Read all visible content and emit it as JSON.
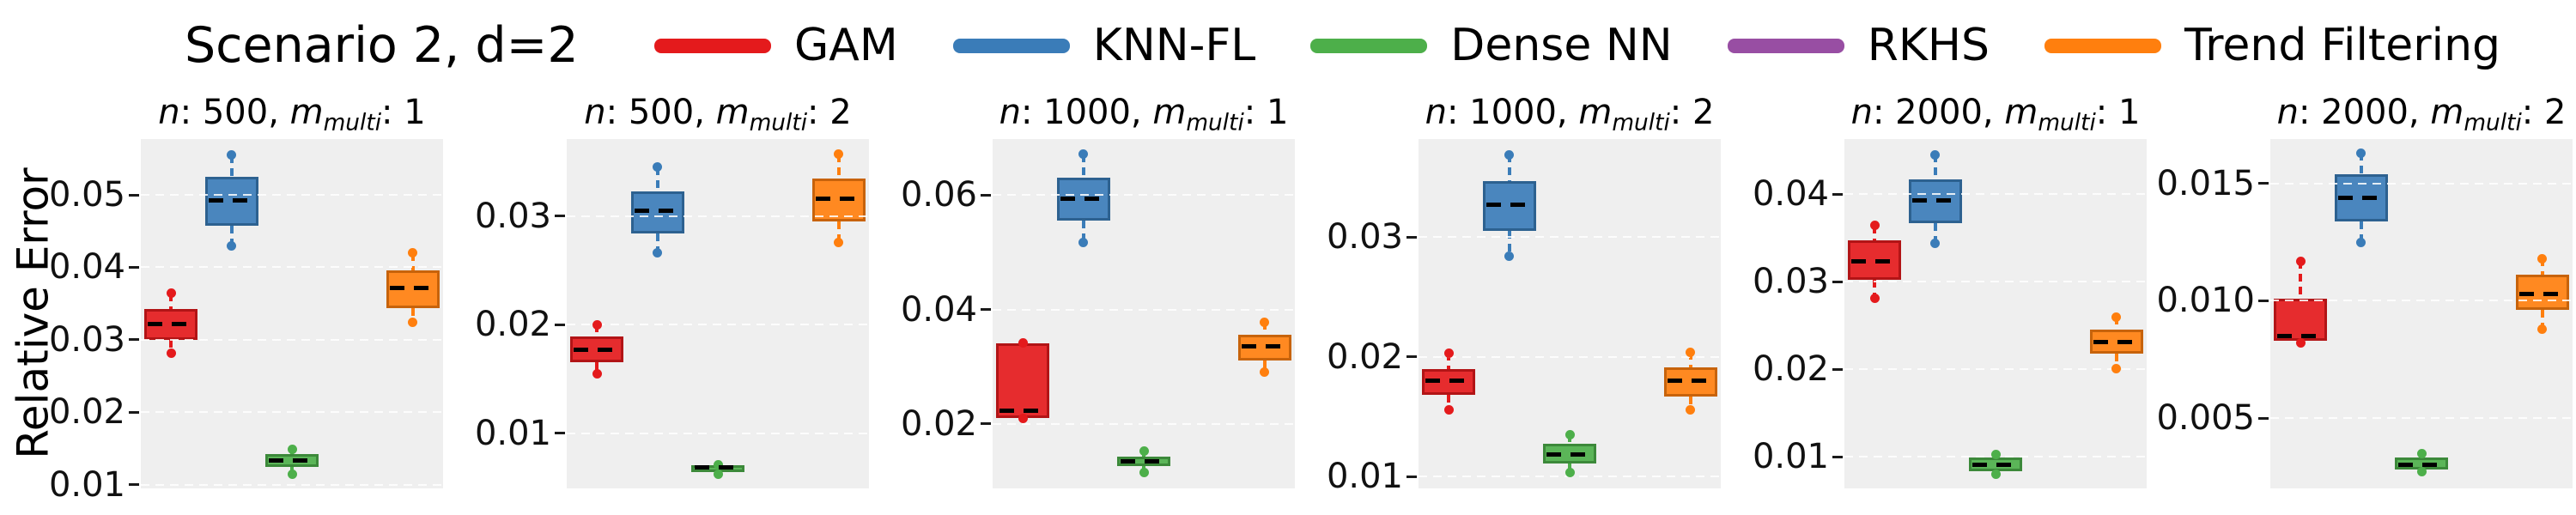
{
  "chart_data": {
    "type": "boxplot",
    "suptitle": "Scenario 2, d=2",
    "ylabel": "Relative Error",
    "grid": "horizontal-dashed-white-on-gray",
    "legend_position": "top",
    "legend": [
      {
        "label": "GAM",
        "color": "#e41a1c"
      },
      {
        "label": "KNN-FL",
        "color": "#3a7cb8"
      },
      {
        "label": "Dense NN",
        "color": "#4daf4a"
      },
      {
        "label": "RKHS",
        "color": "#984ea3"
      },
      {
        "label": "Trend Filtering",
        "color": "#ff7f0e"
      }
    ],
    "title_format": {
      "n_label": "n",
      "m_label": "m",
      "m_sub": "multi"
    },
    "note": "RKHS boxes are outside the visible y-range in every panel; each panel shows 5 x-slots with slot 4 (RKHS) empty.",
    "slot_fractions": {
      "GAM": 0.1,
      "KNN-FL": 0.3,
      "Dense NN": 0.5,
      "RKHS": 0.7,
      "Trend Filtering": 0.9
    },
    "panels": [
      {
        "title": {
          "n": "500",
          "m": "1"
        },
        "title_text": "n: 500, m_multi: 1",
        "ylim": [
          0.0095,
          0.0577
        ],
        "yticks": [
          {
            "v": 0.01,
            "label": "0.01"
          },
          {
            "v": 0.02,
            "label": "0.02"
          },
          {
            "v": 0.03,
            "label": "0.03"
          },
          {
            "v": 0.04,
            "label": "0.04"
          },
          {
            "v": 0.05,
            "label": "0.05"
          }
        ],
        "boxes": [
          {
            "method": "GAM",
            "q1": 0.03,
            "q3": 0.0343,
            "median": 0.0322,
            "whisker_lo": 0.0281,
            "whisker_hi": 0.0364
          },
          {
            "method": "KNN-FL",
            "q1": 0.0457,
            "q3": 0.0525,
            "median": 0.0492,
            "whisker_lo": 0.0429,
            "whisker_hi": 0.0555
          },
          {
            "method": "Dense NN",
            "q1": 0.0125,
            "q3": 0.0142,
            "median": 0.0133,
            "whisker_lo": 0.0115,
            "whisker_hi": 0.0149
          },
          {
            "method": "Trend Filtering",
            "q1": 0.0344,
            "q3": 0.0396,
            "median": 0.0371,
            "whisker_lo": 0.0324,
            "whisker_hi": 0.042
          }
        ]
      },
      {
        "title": {
          "n": "500",
          "m": "2"
        },
        "title_text": "n: 500, m_multi: 2",
        "ylim": [
          0.0049,
          0.0371
        ],
        "yticks": [
          {
            "v": 0.01,
            "label": "0.01"
          },
          {
            "v": 0.02,
            "label": "0.02"
          },
          {
            "v": 0.03,
            "label": "0.03"
          }
        ],
        "boxes": [
          {
            "method": "GAM",
            "q1": 0.0165,
            "q3": 0.0189,
            "median": 0.0177,
            "whisker_lo": 0.0155,
            "whisker_hi": 0.02
          },
          {
            "method": "KNN-FL",
            "q1": 0.0284,
            "q3": 0.0323,
            "median": 0.0305,
            "whisker_lo": 0.0266,
            "whisker_hi": 0.0345
          },
          {
            "method": "Dense NN",
            "q1": 0.0064,
            "q3": 0.007,
            "median": 0.0068,
            "whisker_lo": 0.0062,
            "whisker_hi": 0.0071
          },
          {
            "method": "Trend Filtering",
            "q1": 0.0295,
            "q3": 0.0335,
            "median": 0.0316,
            "whisker_lo": 0.0276,
            "whisker_hi": 0.0357
          }
        ]
      },
      {
        "title": {
          "n": "1000",
          "m": "1"
        },
        "title_text": "n: 1000, m_multi: 1",
        "ylim": [
          0.0087,
          0.0698
        ],
        "yticks": [
          {
            "v": 0.02,
            "label": "0.02"
          },
          {
            "v": 0.04,
            "label": "0.04"
          },
          {
            "v": 0.06,
            "label": "0.06"
          }
        ],
        "boxes": [
          {
            "method": "GAM",
            "q1": 0.021,
            "q3": 0.0341,
            "median": 0.0223,
            "whisker_lo": 0.0209,
            "whisker_hi": 0.0341
          },
          {
            "method": "KNN-FL",
            "q1": 0.0556,
            "q3": 0.0631,
            "median": 0.0593,
            "whisker_lo": 0.0517,
            "whisker_hi": 0.0671
          },
          {
            "method": "Dense NN",
            "q1": 0.0126,
            "q3": 0.0143,
            "median": 0.0135,
            "whisker_lo": 0.0115,
            "whisker_hi": 0.0152
          },
          {
            "method": "Trend Filtering",
            "q1": 0.031,
            "q3": 0.0355,
            "median": 0.0335,
            "whisker_lo": 0.029,
            "whisker_hi": 0.0378
          }
        ]
      },
      {
        "title": {
          "n": "1000",
          "m": "2"
        },
        "title_text": "n: 1000, m_multi: 2",
        "ylim": [
          0.009,
          0.0382
        ],
        "yticks": [
          {
            "v": 0.01,
            "label": "0.01"
          },
          {
            "v": 0.02,
            "label": "0.02"
          },
          {
            "v": 0.03,
            "label": "0.03"
          }
        ],
        "boxes": [
          {
            "method": "GAM",
            "q1": 0.0168,
            "q3": 0.019,
            "median": 0.018,
            "whisker_lo": 0.0156,
            "whisker_hi": 0.0203
          },
          {
            "method": "KNN-FL",
            "q1": 0.0305,
            "q3": 0.0347,
            "median": 0.0327,
            "whisker_lo": 0.0284,
            "whisker_hi": 0.0369
          },
          {
            "method": "Dense NN",
            "q1": 0.0111,
            "q3": 0.0127,
            "median": 0.0118,
            "whisker_lo": 0.0103,
            "whisker_hi": 0.0135
          },
          {
            "method": "Trend Filtering",
            "q1": 0.0167,
            "q3": 0.0191,
            "median": 0.018,
            "whisker_lo": 0.0156,
            "whisker_hi": 0.0204
          }
        ]
      },
      {
        "title": {
          "n": "2000",
          "m": "1"
        },
        "title_text": "n: 2000, m_multi: 1",
        "ylim": [
          0.0064,
          0.0463
        ],
        "yticks": [
          {
            "v": 0.01,
            "label": "0.01"
          },
          {
            "v": 0.02,
            "label": "0.02"
          },
          {
            "v": 0.03,
            "label": "0.03"
          },
          {
            "v": 0.04,
            "label": "0.04"
          }
        ],
        "boxes": [
          {
            "method": "GAM",
            "q1": 0.0302,
            "q3": 0.0347,
            "median": 0.0323,
            "whisker_lo": 0.0281,
            "whisker_hi": 0.0364
          },
          {
            "method": "KNN-FL",
            "q1": 0.0367,
            "q3": 0.0417,
            "median": 0.0393,
            "whisker_lo": 0.0344,
            "whisker_hi": 0.0445
          },
          {
            "method": "Dense NN",
            "q1": 0.0084,
            "q3": 0.0099,
            "median": 0.0091,
            "whisker_lo": 0.008,
            "whisker_hi": 0.0103
          },
          {
            "method": "Trend Filtering",
            "q1": 0.0218,
            "q3": 0.0245,
            "median": 0.0231,
            "whisker_lo": 0.0201,
            "whisker_hi": 0.026
          }
        ]
      },
      {
        "title": {
          "n": "2000",
          "m": "2"
        },
        "title_text": "n: 2000, m_multi: 2",
        "ylim": [
          0.002,
          0.0169
        ],
        "yticks": [
          {
            "v": 0.005,
            "label": "0.005"
          },
          {
            "v": 0.01,
            "label": "0.010"
          },
          {
            "v": 0.015,
            "label": "0.015"
          }
        ],
        "boxes": [
          {
            "method": "GAM",
            "q1": 0.0083,
            "q3": 0.0101,
            "median": 0.0085,
            "whisker_lo": 0.0082,
            "whisker_hi": 0.0117
          },
          {
            "method": "KNN-FL",
            "q1": 0.0134,
            "q3": 0.0154,
            "median": 0.0144,
            "whisker_lo": 0.0125,
            "whisker_hi": 0.0163
          },
          {
            "method": "Dense NN",
            "q1": 0.0028,
            "q3": 0.0033,
            "median": 0.003,
            "whisker_lo": 0.0027,
            "whisker_hi": 0.0035
          },
          {
            "method": "Trend Filtering",
            "q1": 0.0096,
            "q3": 0.0111,
            "median": 0.0103,
            "whisker_lo": 0.0088,
            "whisker_hi": 0.0118
          }
        ]
      }
    ]
  }
}
